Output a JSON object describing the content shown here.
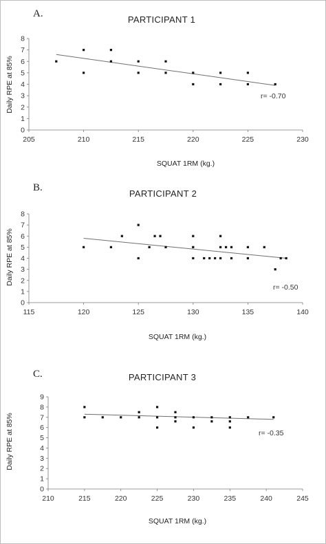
{
  "figure": {
    "panels": [
      {
        "letter": "A.",
        "title": "PARTICIPANT 1",
        "r_text": "r= -0.70"
      },
      {
        "letter": "B.",
        "title": "PARTICIPANT 2",
        "r_text": "r= -0.50"
      },
      {
        "letter": "C.",
        "title": "PARTICIPANT 3",
        "r_text": "r= -0.35"
      }
    ]
  },
  "chart_data": [
    {
      "type": "scatter",
      "title": "PARTICIPANT 1",
      "xlabel": "SQUAT 1RM (kg.)",
      "ylabel": "Daily RPE at 85%",
      "xlim": [
        205,
        230
      ],
      "ylim": [
        0,
        8
      ],
      "xticks": [
        205,
        210,
        215,
        220,
        225,
        230
      ],
      "yticks": [
        0,
        1,
        2,
        3,
        4,
        5,
        6,
        7,
        8
      ],
      "grid": false,
      "points": [
        [
          207.5,
          6
        ],
        [
          210,
          7
        ],
        [
          210,
          5
        ],
        [
          212.5,
          7
        ],
        [
          212.5,
          6
        ],
        [
          215,
          6
        ],
        [
          215,
          5
        ],
        [
          217.5,
          6
        ],
        [
          217.5,
          5
        ],
        [
          220,
          5
        ],
        [
          220,
          4
        ],
        [
          222.5,
          5
        ],
        [
          222.5,
          4
        ],
        [
          225,
          5
        ],
        [
          225,
          4
        ],
        [
          227.5,
          4
        ]
      ],
      "trendline": {
        "x": [
          207.5,
          227.5
        ],
        "y": [
          6.6,
          3.9
        ]
      },
      "annotation": "r= -0.70"
    },
    {
      "type": "scatter",
      "title": "PARTICIPANT 2",
      "xlabel": "SQUAT 1RM (kg.)",
      "ylabel": "Daily RPE at 85%",
      "xlim": [
        115,
        140
      ],
      "ylim": [
        0,
        8
      ],
      "xticks": [
        115,
        120,
        125,
        130,
        135,
        140
      ],
      "yticks": [
        0,
        1,
        2,
        3,
        4,
        5,
        6,
        7,
        8
      ],
      "grid": false,
      "points": [
        [
          120,
          5
        ],
        [
          122.5,
          5
        ],
        [
          123.5,
          6
        ],
        [
          125,
          7
        ],
        [
          125,
          4
        ],
        [
          126,
          5
        ],
        [
          126.5,
          6
        ],
        [
          127,
          6
        ],
        [
          127.5,
          5
        ],
        [
          130,
          6
        ],
        [
          130,
          5
        ],
        [
          130,
          4
        ],
        [
          131,
          4
        ],
        [
          131.5,
          4
        ],
        [
          132,
          4
        ],
        [
          132.5,
          6
        ],
        [
          132.5,
          5
        ],
        [
          132.5,
          4
        ],
        [
          133,
          5
        ],
        [
          133.5,
          5
        ],
        [
          133.5,
          4
        ],
        [
          135,
          5
        ],
        [
          135,
          4
        ],
        [
          136.5,
          5
        ],
        [
          137.5,
          3
        ],
        [
          138,
          4
        ],
        [
          138.5,
          4
        ]
      ],
      "trendline": {
        "x": [
          120,
          138.5
        ],
        "y": [
          5.8,
          4.0
        ]
      },
      "annotation": "r= -0.50"
    },
    {
      "type": "scatter",
      "title": "PARTICIPANT 3",
      "xlabel": "SQUAT 1RM (kg.)",
      "ylabel": "Daily RPE at 85%",
      "xlim": [
        210,
        245
      ],
      "ylim": [
        0,
        9
      ],
      "xticks": [
        210,
        215,
        220,
        225,
        230,
        235,
        240,
        245
      ],
      "yticks": [
        0,
        1,
        2,
        3,
        4,
        5,
        6,
        7,
        8,
        9
      ],
      "grid": false,
      "points": [
        [
          215,
          8
        ],
        [
          215,
          7
        ],
        [
          217.5,
          7
        ],
        [
          220,
          7
        ],
        [
          222.5,
          7.5
        ],
        [
          222.5,
          7
        ],
        [
          225,
          8
        ],
        [
          225,
          7
        ],
        [
          225,
          6
        ],
        [
          227.5,
          7.5
        ],
        [
          227.5,
          7
        ],
        [
          227.5,
          6.6
        ],
        [
          230,
          7
        ],
        [
          230,
          6
        ],
        [
          232.5,
          7
        ],
        [
          232.5,
          6.6
        ],
        [
          235,
          7
        ],
        [
          235,
          6.6
        ],
        [
          235,
          6
        ],
        [
          237.5,
          7
        ],
        [
          241,
          7
        ]
      ],
      "trendline": {
        "x": [
          215,
          241
        ],
        "y": [
          7.3,
          6.8
        ]
      },
      "annotation": "r= -0.35"
    }
  ]
}
